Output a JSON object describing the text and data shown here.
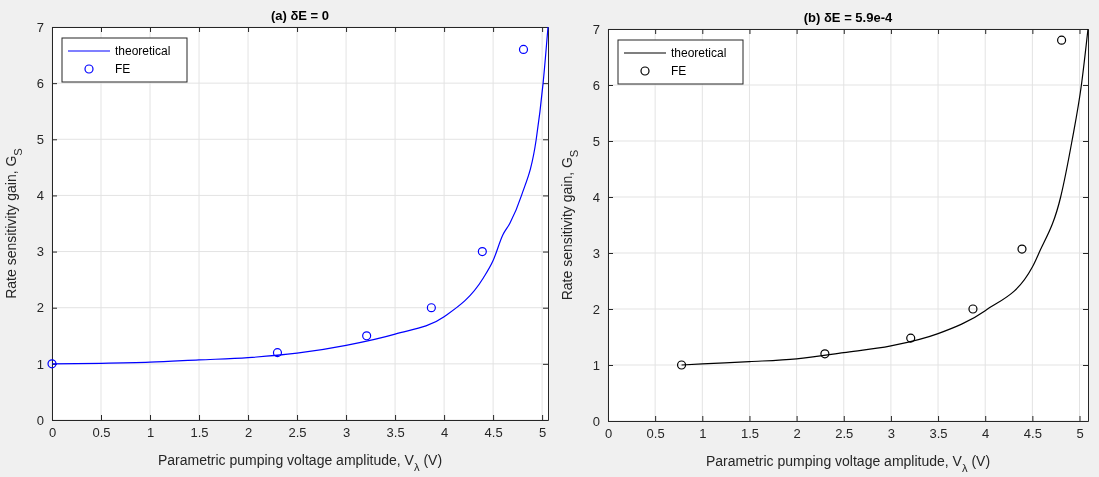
{
  "chart_data": [
    {
      "type": "line",
      "title": "(a) δE = 0",
      "xlabel": "Parametric pumping voltage amplitude, V$_{λ}$ (V)",
      "ylabel": "Rate sensitivity gain, G$_{S}$",
      "xlim": [
        0,
        5.06
      ],
      "xticks": [
        0,
        0.5,
        1,
        1.5,
        2,
        2.5,
        3,
        3.5,
        4,
        4.5,
        5
      ],
      "ylim": [
        0,
        7
      ],
      "yticks": [
        0,
        1,
        2,
        3,
        4,
        5,
        6,
        7
      ],
      "grid": true,
      "legend": "top left",
      "series": [
        {
          "name": "theoretical",
          "color": "#0000ff",
          "marker": "none",
          "x": [
            0,
            0.5,
            1,
            1.5,
            2,
            2.5,
            3,
            3.5,
            4,
            4.4,
            4.5,
            4.6,
            4.67,
            4.79,
            4.94,
            5.01,
            5.06
          ],
          "values": [
            1,
            1.01,
            1.03,
            1.07,
            1.11,
            1.19,
            1.33,
            1.53,
            1.84,
            2.53,
            2.84,
            3.3,
            3.5,
            4,
            5,
            6,
            7
          ]
        },
        {
          "name": "FE",
          "type": "scatter",
          "color": "#0000ff",
          "marker": "circle",
          "x": [
            0,
            2.3,
            3.21,
            3.87,
            4.39,
            4.81
          ],
          "values": [
            1,
            1.2,
            1.5,
            2,
            3,
            6.6
          ]
        }
      ]
    },
    {
      "type": "line",
      "title": "(b) δE = 5.9e-4",
      "xlabel": "Parametric pumping voltage amplitude, V$_{λ}$ (V)",
      "ylabel": "Rate sensitivity gain, G$_{S}$",
      "xlim": [
        0,
        5.09
      ],
      "xticks": [
        0,
        0.5,
        1,
        1.5,
        2,
        2.5,
        3,
        3.5,
        4,
        4.5,
        5
      ],
      "ylim": [
        0,
        7
      ],
      "yticks": [
        0,
        1,
        2,
        3,
        4,
        5,
        6,
        7
      ],
      "grid": true,
      "legend": "top left",
      "series": [
        {
          "name": "theoretical",
          "color": "#000000",
          "marker": "none",
          "x": [
            0.78,
            1,
            1.5,
            2,
            2.5,
            3,
            3.5,
            4,
            4.5,
            4.57,
            4.8,
            4.92,
            5.02,
            5.09
          ],
          "values": [
            1,
            1.02,
            1.06,
            1.11,
            1.22,
            1.34,
            1.56,
            1.97,
            2.75,
            3,
            4,
            5,
            6,
            7
          ]
        },
        {
          "name": "FE",
          "type": "scatter",
          "color": "#000000",
          "marker": "circle",
          "x": [
            0.78,
            2.3,
            3.21,
            3.87,
            4.39,
            4.81
          ],
          "values": [
            1,
            1.2,
            1.48,
            2,
            3.07,
            6.8
          ]
        }
      ]
    }
  ]
}
